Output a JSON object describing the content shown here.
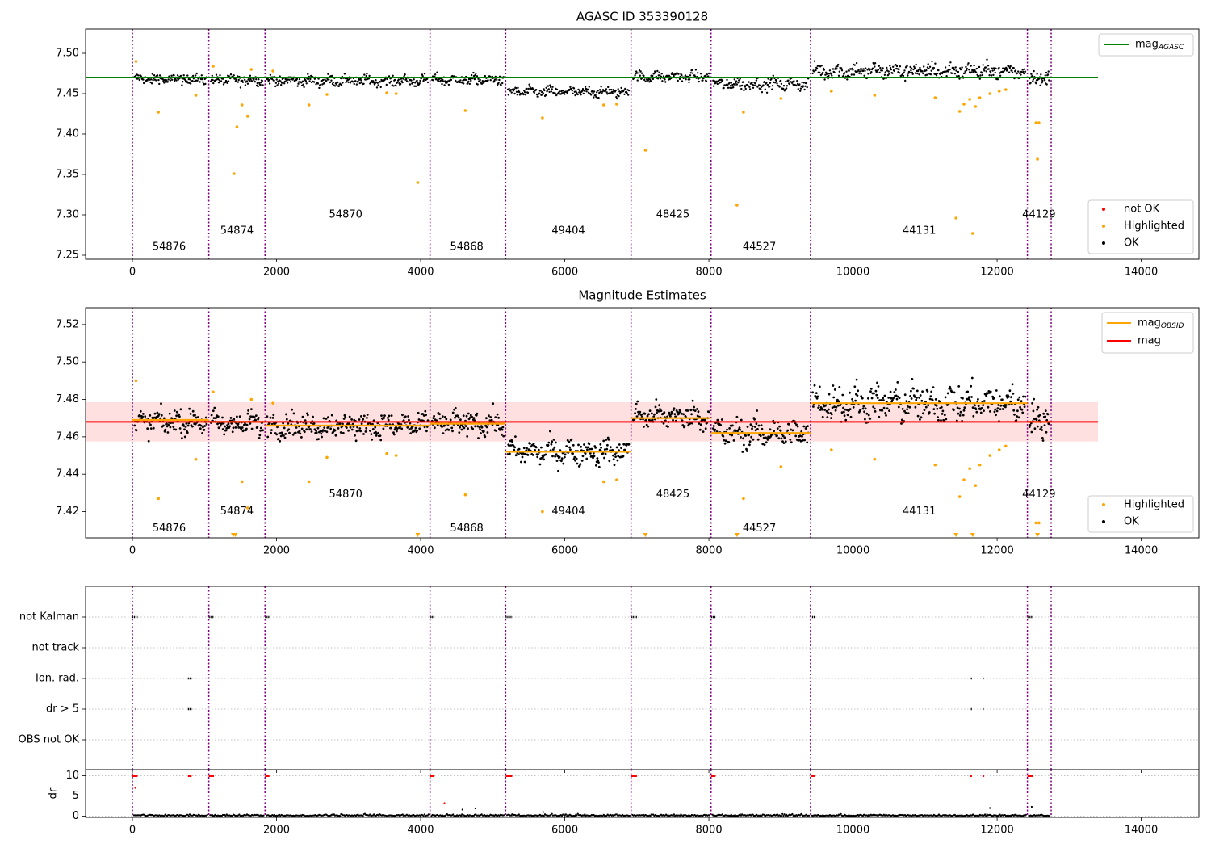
{
  "chart_data": [
    {
      "type": "scatter",
      "title": "AGASC ID 353390128",
      "xlabel": "",
      "ylabel": "",
      "xlim": [
        -650,
        14800
      ],
      "ylim": [
        7.245,
        7.53
      ],
      "xticks": [
        0,
        2000,
        4000,
        6000,
        8000,
        10000,
        12000,
        14000
      ],
      "yticks": [
        7.25,
        7.3,
        7.35,
        7.4,
        7.45,
        7.5
      ],
      "ytick_labels": [
        "7.25",
        "7.30",
        "7.35",
        "7.40",
        "7.45",
        "7.50"
      ],
      "obs_boundaries": [
        0,
        1060,
        1840,
        4130,
        5180,
        6920,
        8030,
        9410,
        12420,
        12750
      ],
      "obsid_labels": [
        {
          "text": "54876",
          "x": 510,
          "y": 7.26
        },
        {
          "text": "54874",
          "x": 1450,
          "y": 7.28
        },
        {
          "text": "54870",
          "x": 2960,
          "y": 7.3
        },
        {
          "text": "54868",
          "x": 4640,
          "y": 7.26
        },
        {
          "text": "49404",
          "x": 6050,
          "y": 7.28
        },
        {
          "text": "48425",
          "x": 7500,
          "y": 7.3
        },
        {
          "text": "44527",
          "x": 8700,
          "y": 7.26
        },
        {
          "text": "44131",
          "x": 10920,
          "y": 7.28
        },
        {
          "text": "44129",
          "x": 12580,
          "y": 7.3
        }
      ],
      "mag_agasc": 7.47,
      "mag_agasc_range": [
        -650,
        13400
      ],
      "ok_segments": [
        {
          "start": 0,
          "end": 1060,
          "mean": 7.468,
          "spread": 0.006
        },
        {
          "start": 1060,
          "end": 1840,
          "mean": 7.467,
          "spread": 0.006
        },
        {
          "start": 1840,
          "end": 4130,
          "mean": 7.466,
          "spread": 0.006
        },
        {
          "start": 4130,
          "end": 5180,
          "mean": 7.467,
          "spread": 0.006
        },
        {
          "start": 5180,
          "end": 6920,
          "mean": 7.452,
          "spread": 0.006
        },
        {
          "start": 6920,
          "end": 8030,
          "mean": 7.471,
          "spread": 0.006
        },
        {
          "start": 8030,
          "end": 9410,
          "mean": 7.462,
          "spread": 0.007
        },
        {
          "start": 9410,
          "end": 12420,
          "mean": 7.478,
          "spread": 0.009
        },
        {
          "start": 12420,
          "end": 12750,
          "mean": 7.469,
          "spread": 0.008
        }
      ],
      "highlighted": [
        [
          50,
          7.49
        ],
        [
          360,
          7.427
        ],
        [
          880,
          7.448
        ],
        [
          1120,
          7.484
        ],
        [
          1410,
          7.351
        ],
        [
          1450,
          7.409
        ],
        [
          1520,
          7.436
        ],
        [
          1600,
          7.422
        ],
        [
          1650,
          7.48
        ],
        [
          1950,
          7.478
        ],
        [
          2450,
          7.436
        ],
        [
          2700,
          7.449
        ],
        [
          3530,
          7.451
        ],
        [
          3660,
          7.45
        ],
        [
          3960,
          7.34
        ],
        [
          4620,
          7.429
        ],
        [
          5690,
          7.42
        ],
        [
          6540,
          7.436
        ],
        [
          6720,
          7.437
        ],
        [
          7120,
          7.38
        ],
        [
          8390,
          7.312
        ],
        [
          8480,
          7.427
        ],
        [
          9000,
          7.444
        ],
        [
          9700,
          7.453
        ],
        [
          10300,
          7.448
        ],
        [
          11140,
          7.445
        ],
        [
          11430,
          7.296
        ],
        [
          11480,
          7.428
        ],
        [
          11540,
          7.437
        ],
        [
          11620,
          7.443
        ],
        [
          11660,
          7.277
        ],
        [
          11700,
          7.434
        ],
        [
          11760,
          7.445
        ],
        [
          11900,
          7.45
        ],
        [
          12030,
          7.453
        ],
        [
          12120,
          7.455
        ],
        [
          12540,
          7.414
        ],
        [
          12560,
          7.369
        ],
        [
          12580,
          7.414
        ]
      ],
      "legend_lines": [
        {
          "name": "mag",
          "sub": "AGASC",
          "color": "#008000"
        }
      ],
      "legend_points": [
        {
          "name": "not OK",
          "color": "#ff0000"
        },
        {
          "name": "Highlighted",
          "color": "#ffa500"
        },
        {
          "name": "OK",
          "color": "#000000"
        }
      ]
    },
    {
      "type": "scatter",
      "title": "Magnitude Estimates",
      "xlabel": "",
      "ylabel": "",
      "xlim": [
        -650,
        14800
      ],
      "ylim": [
        7.406,
        7.529
      ],
      "xticks": [
        0,
        2000,
        4000,
        6000,
        8000,
        10000,
        12000,
        14000
      ],
      "yticks": [
        7.42,
        7.44,
        7.46,
        7.48,
        7.5,
        7.52
      ],
      "ytick_labels": [
        "7.42",
        "7.44",
        "7.46",
        "7.48",
        "7.50",
        "7.52"
      ],
      "obsid_labels": [
        {
          "text": "54876",
          "x": 510,
          "y": 7.411
        },
        {
          "text": "54874",
          "x": 1450,
          "y": 7.42
        },
        {
          "text": "54870",
          "x": 2960,
          "y": 7.429
        },
        {
          "text": "54868",
          "x": 4640,
          "y": 7.411
        },
        {
          "text": "49404",
          "x": 6050,
          "y": 7.42
        },
        {
          "text": "48425",
          "x": 7500,
          "y": 7.429
        },
        {
          "text": "44527",
          "x": 8700,
          "y": 7.411
        },
        {
          "text": "44131",
          "x": 10920,
          "y": 7.42
        },
        {
          "text": "44129",
          "x": 12580,
          "y": 7.429
        }
      ],
      "mag": 7.468,
      "mag_band": [
        7.4575,
        7.4785
      ],
      "mag_range": [
        -650,
        13400
      ],
      "mag_obsid": [
        {
          "start": 0,
          "end": 1060,
          "value": 7.469
        },
        {
          "start": 1060,
          "end": 1840,
          "value": 7.468
        },
        {
          "start": 1840,
          "end": 4130,
          "value": 7.466
        },
        {
          "start": 4130,
          "end": 5180,
          "value": 7.467
        },
        {
          "start": 5180,
          "end": 6920,
          "value": 7.452
        },
        {
          "start": 6920,
          "end": 8030,
          "value": 7.47
        },
        {
          "start": 8030,
          "end": 9410,
          "value": 7.462
        },
        {
          "start": 9410,
          "end": 12420,
          "value": 7.478
        },
        {
          "start": 12420,
          "end": 12750,
          "value": 7.468
        }
      ],
      "ok_segments": [
        {
          "start": 0,
          "end": 1060,
          "mean": 7.468,
          "spread": 0.006
        },
        {
          "start": 1060,
          "end": 1840,
          "mean": 7.467,
          "spread": 0.006
        },
        {
          "start": 1840,
          "end": 4130,
          "mean": 7.466,
          "spread": 0.006
        },
        {
          "start": 4130,
          "end": 5180,
          "mean": 7.467,
          "spread": 0.006
        },
        {
          "start": 5180,
          "end": 6920,
          "mean": 7.452,
          "spread": 0.006
        },
        {
          "start": 6920,
          "end": 8030,
          "mean": 7.471,
          "spread": 0.006
        },
        {
          "start": 8030,
          "end": 9410,
          "mean": 7.462,
          "spread": 0.007
        },
        {
          "start": 9410,
          "end": 12420,
          "mean": 7.478,
          "spread": 0.009
        },
        {
          "start": 12420,
          "end": 12750,
          "mean": 7.469,
          "spread": 0.008
        }
      ],
      "highlighted": [
        [
          50,
          7.49
        ],
        [
          360,
          7.427
        ],
        [
          880,
          7.448
        ],
        [
          1120,
          7.484
        ],
        [
          1520,
          7.436
        ],
        [
          1600,
          7.422
        ],
        [
          1650,
          7.48
        ],
        [
          1950,
          7.478
        ],
        [
          2450,
          7.436
        ],
        [
          2700,
          7.449
        ],
        [
          3530,
          7.451
        ],
        [
          3660,
          7.45
        ],
        [
          4620,
          7.429
        ],
        [
          5690,
          7.42
        ],
        [
          6540,
          7.436
        ],
        [
          6720,
          7.437
        ],
        [
          8480,
          7.427
        ],
        [
          9000,
          7.444
        ],
        [
          9700,
          7.453
        ],
        [
          10300,
          7.448
        ],
        [
          11140,
          7.445
        ],
        [
          11480,
          7.428
        ],
        [
          11540,
          7.437
        ],
        [
          11620,
          7.443
        ],
        [
          11700,
          7.434
        ],
        [
          11760,
          7.445
        ],
        [
          11900,
          7.45
        ],
        [
          12030,
          7.453
        ],
        [
          12120,
          7.455
        ],
        [
          12540,
          7.414
        ],
        [
          12580,
          7.414
        ]
      ],
      "clipped_low": [
        1400,
        1430,
        3960,
        7120,
        8390,
        11430,
        11660,
        12560
      ],
      "legend_lines": [
        {
          "name": "mag",
          "sub": "OBSID",
          "color": "#ffa500"
        },
        {
          "name": "mag",
          "sub": "",
          "color": "#ff0000"
        }
      ],
      "legend_points": [
        {
          "name": "Highlighted",
          "color": "#ffa500"
        },
        {
          "name": "OK",
          "color": "#000000"
        }
      ]
    },
    {
      "type": "scatter",
      "title": "",
      "xlabel": "",
      "ylabel": "",
      "xlim": [
        -650,
        14800
      ],
      "xticks": [
        0,
        2000,
        4000,
        6000,
        8000,
        10000,
        12000,
        14000
      ],
      "flag_rows": [
        "not Kalman",
        "not track",
        "Ion. rad.",
        "dr > 5",
        "OBS not OK"
      ],
      "flag_points": {
        "not Kalman": [
          [
            0,
            60
          ],
          [
            1060,
            60
          ],
          [
            1840,
            50
          ],
          [
            4130,
            50
          ],
          [
            5180,
            80
          ],
          [
            6920,
            70
          ],
          [
            8030,
            50
          ],
          [
            9410,
            50
          ],
          [
            12420,
            70
          ]
        ],
        "not track": [],
        "Ion. rad.": [
          [
            770,
            40
          ],
          [
            11620,
            20
          ],
          [
            11800,
            10
          ]
        ],
        "dr > 5": [
          [
            40,
            10
          ],
          [
            770,
            40
          ],
          [
            11620,
            20
          ],
          [
            11800,
            10
          ]
        ],
        "OBS not OK": []
      }
    },
    {
      "type": "scatter",
      "title": "",
      "xlabel": "",
      "ylabel": "dr",
      "xlim": [
        -650,
        14800
      ],
      "ylim": [
        -0.3,
        11.5
      ],
      "xticks": [
        0,
        2000,
        4000,
        6000,
        8000,
        10000,
        12000,
        14000
      ],
      "xtick_labels": [
        "0",
        "2000",
        "4000",
        "6000",
        "8000",
        "10000",
        "12000",
        "14000"
      ],
      "yticks": [
        0,
        5,
        10
      ],
      "ytick_labels": [
        "0",
        "5",
        "10"
      ],
      "dr_spikes": [
        [
          0,
          60
        ],
        [
          770,
          40
        ],
        [
          1060,
          60
        ],
        [
          1840,
          50
        ],
        [
          4130,
          50
        ],
        [
          5180,
          80
        ],
        [
          6920,
          70
        ],
        [
          8030,
          50
        ],
        [
          9410,
          50
        ],
        [
          11620,
          20
        ],
        [
          11800,
          10
        ],
        [
          12420,
          70
        ]
      ],
      "dr_outliers": [
        [
          40,
          7.0
        ],
        [
          4330,
          3.2
        ],
        [
          4580,
          1.6
        ],
        [
          4760,
          1.9
        ],
        [
          5700,
          1.0
        ],
        [
          11900,
          2.0
        ],
        [
          12480,
          2.3
        ]
      ]
    }
  ]
}
